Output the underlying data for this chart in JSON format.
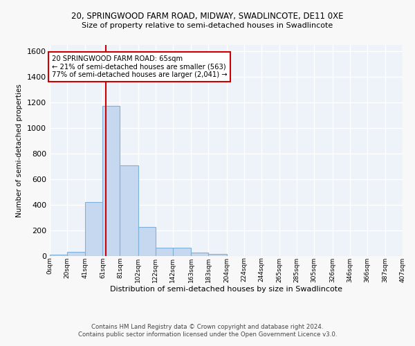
{
  "title1": "20, SPRINGWOOD FARM ROAD, MIDWAY, SWADLINCOTE, DE11 0XE",
  "title2": "Size of property relative to semi-detached houses in Swadlincote",
  "xlabel": "Distribution of semi-detached houses by size in Swadlincote",
  "ylabel": "Number of semi-detached properties",
  "footnote": "Contains HM Land Registry data © Crown copyright and database right 2024.\nContains public sector information licensed under the Open Government Licence v3.0.",
  "bin_edges": [
    0,
    20,
    41,
    61,
    81,
    102,
    122,
    142,
    163,
    183,
    204,
    224,
    244,
    265,
    285,
    305,
    326,
    346,
    366,
    387,
    407
  ],
  "bar_heights": [
    10,
    30,
    420,
    1175,
    710,
    225,
    65,
    65,
    25,
    15,
    0,
    0,
    0,
    0,
    0,
    0,
    0,
    0,
    0,
    0
  ],
  "bar_color": "#c5d8f0",
  "bar_edge_color": "#7fb0d8",
  "property_size": 65,
  "red_line_color": "#cc0000",
  "annotation_text": "20 SPRINGWOOD FARM ROAD: 65sqm\n← 21% of semi-detached houses are smaller (563)\n77% of semi-detached houses are larger (2,041) →",
  "annotation_box_color": "#ffffff",
  "annotation_border_color": "#cc0000",
  "ylim": [
    0,
    1650
  ],
  "background_color": "#eef3fa",
  "grid_color": "#ffffff",
  "tick_labels": [
    "0sqm",
    "20sqm",
    "41sqm",
    "61sqm",
    "81sqm",
    "102sqm",
    "122sqm",
    "142sqm",
    "163sqm",
    "183sqm",
    "204sqm",
    "224sqm",
    "244sqm",
    "265sqm",
    "285sqm",
    "305sqm",
    "326sqm",
    "346sqm",
    "366sqm",
    "387sqm",
    "407sqm"
  ],
  "fig_bg": "#f8f8f8"
}
